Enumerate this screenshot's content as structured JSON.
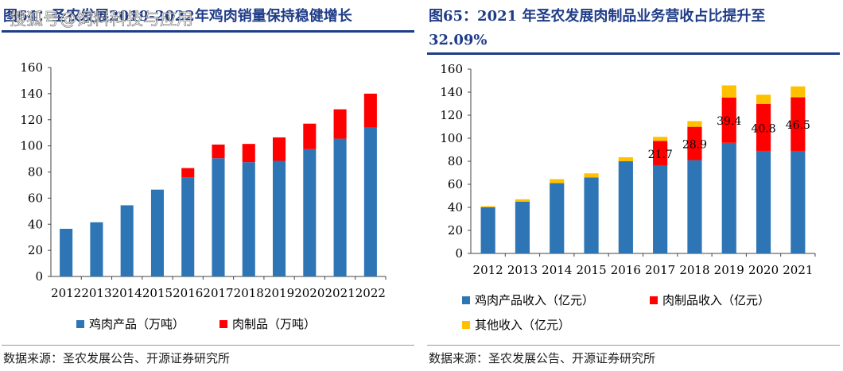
{
  "watermark": "搜狐号@饲料科技与应用",
  "left": {
    "title": "图64：圣农发展2019-2022年鸡肉销量保持稳健增长",
    "source": "数据来源：圣农发展公告、开源证券研究所"
  },
  "right": {
    "title_line1": "图65：2021 年圣农发展肉制品业务营收占比提升至",
    "title_line2": "32.09%",
    "source": "数据来源：圣农发展公告、开源证券研究所"
  },
  "colors": {
    "blue": "#2e75b6",
    "red": "#ff0000",
    "yellow": "#ffc000",
    "title": "#1f3c88"
  },
  "chart_data": [
    {
      "type": "bar",
      "stacked": true,
      "categories": [
        "2012",
        "2013",
        "2014",
        "2015",
        "2016",
        "2017",
        "2018",
        "2019",
        "2020",
        "2021",
        "2022"
      ],
      "series": [
        {
          "name": "鸡肉产品（万吨）",
          "color": "#2e75b6",
          "values": [
            36.5,
            41.5,
            54.5,
            66.5,
            76,
            90.5,
            87.5,
            88.5,
            97.5,
            105.5,
            114
          ]
        },
        {
          "name": "肉制品（万吨）",
          "color": "#ff0000",
          "values": [
            0,
            0,
            0,
            0,
            7,
            10.5,
            14,
            18,
            19.5,
            22.5,
            26
          ]
        }
      ],
      "ylim": [
        0,
        160
      ],
      "yticks": [
        0,
        20,
        40,
        60,
        80,
        100,
        120,
        140,
        160
      ],
      "legend_position": "bottom"
    },
    {
      "type": "bar",
      "stacked": true,
      "categories": [
        "2012",
        "2013",
        "2014",
        "2015",
        "2016",
        "2017",
        "2018",
        "2019",
        "2020",
        "2021"
      ],
      "series": [
        {
          "name": "鸡肉产品收入（亿元）",
          "color": "#2e75b6",
          "values": [
            40,
            45,
            61,
            66,
            80,
            76,
            81,
            96,
            89,
            89
          ]
        },
        {
          "name": "肉制品收入（亿元）",
          "color": "#ff0000",
          "values": [
            0,
            0,
            0,
            0,
            0,
            21.7,
            28.9,
            39.4,
            40.8,
            46.5
          ]
        },
        {
          "name": "其他收入（亿元）",
          "color": "#ffc000",
          "values": [
            1,
            2,
            3.5,
            3.5,
            3.5,
            3.5,
            5,
            10.5,
            8,
            9.5
          ]
        }
      ],
      "data_labels": {
        "series": 1,
        "years": [
          "2017",
          "2018",
          "2019",
          "2020",
          "2021"
        ],
        "values": [
          "21.7",
          "28.9",
          "39.4",
          "40.8",
          "46.5"
        ]
      },
      "ylim": [
        0,
        160
      ],
      "yticks": [
        0,
        20,
        40,
        60,
        80,
        100,
        120,
        140,
        160
      ],
      "legend_position": "bottom"
    }
  ]
}
